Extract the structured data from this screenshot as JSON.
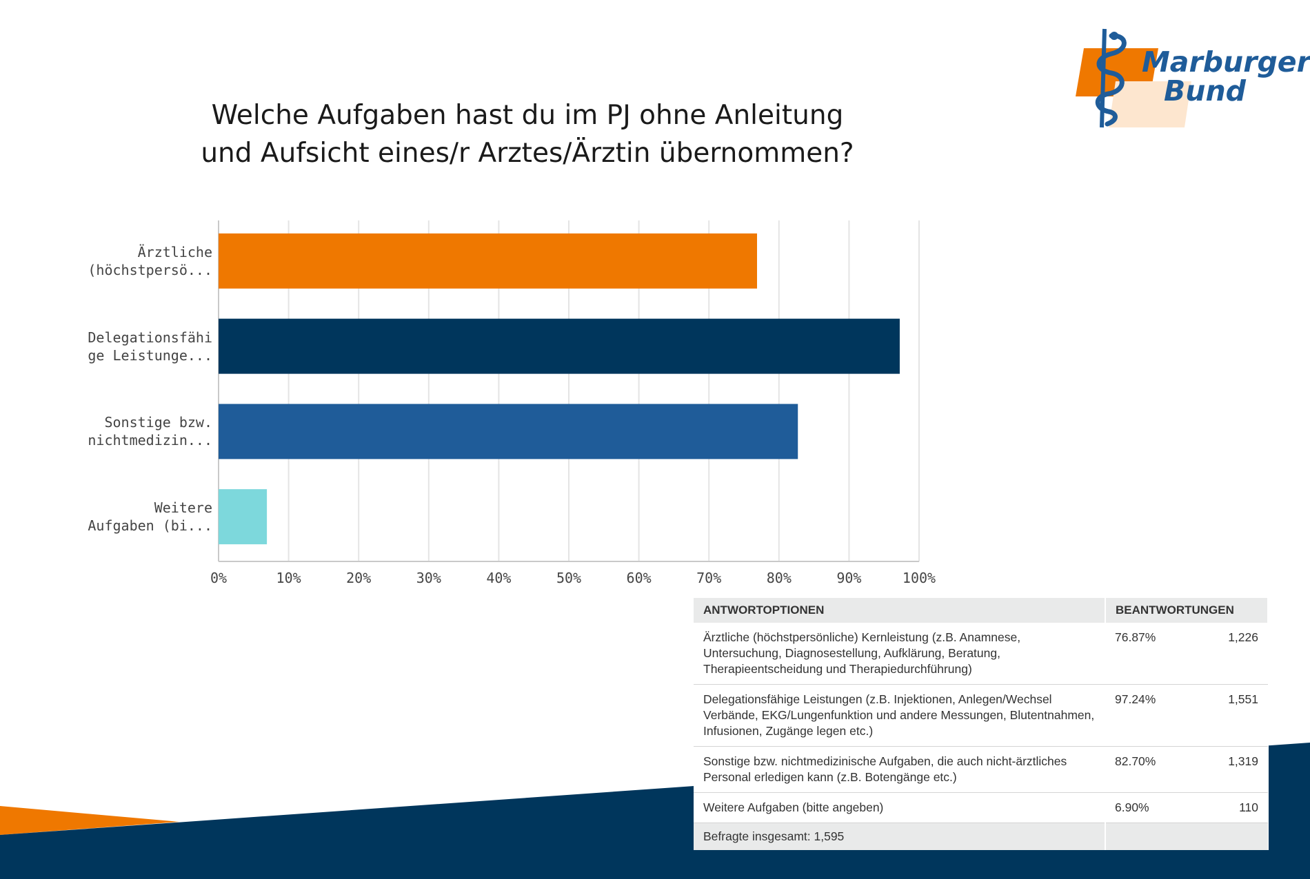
{
  "title_lines": [
    "Welche Aufgaben hast du im PJ ohne Anleitung",
    "und Aufsicht eines/r Arztes/Ärztin übernommen?"
  ],
  "logo": {
    "line1": "Marburger",
    "line2": "Bund",
    "icon": "rod-of-asclepius-icon"
  },
  "colors": {
    "orange": "#ef7800",
    "navy": "#00365c",
    "blue": "#1f5c99",
    "cyan": "#7dd8dc",
    "logo_orange": "#ef7800",
    "logo_peach": "#fde6cf"
  },
  "chart_data": {
    "type": "bar",
    "orientation": "horizontal",
    "categories": [
      [
        "Ärztliche",
        "(höchstpersö..."
      ],
      [
        "Delegationsfähi",
        "ge Leistunge..."
      ],
      [
        "Sonstige bzw.",
        "nichtmedizin..."
      ],
      [
        "Weitere",
        "Aufgaben (bi..."
      ]
    ],
    "values": [
      76.87,
      97.24,
      82.7,
      6.9
    ],
    "bar_colors": [
      "#ef7800",
      "#00365c",
      "#1f5c99",
      "#7dd8dc"
    ],
    "xlim": [
      0,
      100
    ],
    "xticks": [
      "0%",
      "10%",
      "20%",
      "30%",
      "40%",
      "50%",
      "60%",
      "70%",
      "80%",
      "90%",
      "100%"
    ],
    "grid": true
  },
  "table": {
    "headers": [
      "ANTWORTOPTIONEN",
      "BEANTWORTUNGEN"
    ],
    "rows": [
      {
        "option": "Ärztliche (höchstpersönliche) Kernleistung (z.B. Anamnese, Untersuchung, Diagnosestellung, Aufklärung, Beratung, Therapieentscheidung und Therapiedurchführung)",
        "percent": "76.87%",
        "count": "1,226"
      },
      {
        "option": "Delegationsfähige Leistungen (z.B. Injektionen, Anlegen/Wechsel Verbände, EKG/Lungenfunktion und andere Messungen, Blutentnahmen, Infusionen, Zugänge legen etc.)",
        "percent": "97.24%",
        "count": "1,551"
      },
      {
        "option": "Sonstige bzw. nichtmedizinische Aufgaben, die auch nicht-ärztliches Personal erledigen kann (z.B. Botengänge etc.)",
        "percent": "82.70%",
        "count": "1,319"
      },
      {
        "option": "Weitere Aufgaben (bitte angeben)",
        "percent": "6.90%",
        "count": "110"
      }
    ],
    "total": "Befragte insgesamt: 1,595"
  }
}
